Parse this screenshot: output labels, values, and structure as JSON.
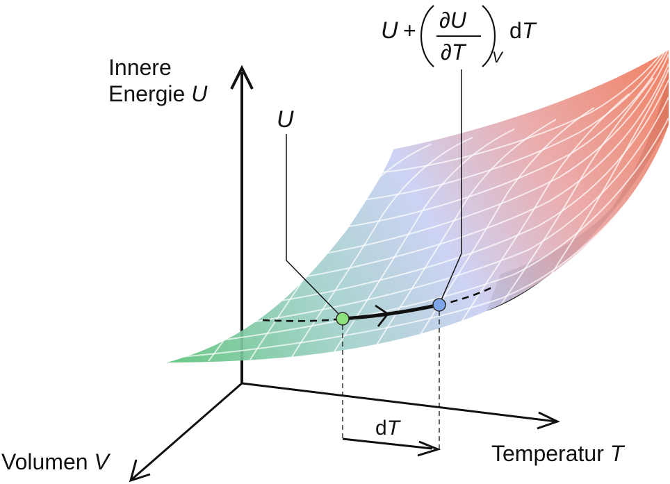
{
  "axes": {
    "energy_label_line1": "Innere",
    "energy_label_line2_text": "Energie ",
    "energy_label_line2_symbol": "U",
    "temperature_label_text": "Temperatur ",
    "temperature_label_symbol": "T",
    "volume_label_text": "Volumen ",
    "volume_label_symbol": "V"
  },
  "annotations": {
    "start_point_symbol": "U",
    "end_expr": {
      "u": "U",
      "plus": "+",
      "numerator": "∂U",
      "denominator": "∂T",
      "subscript": "V",
      "d": "d",
      "t": "T"
    },
    "increment_d": "d",
    "increment_symbol": "T"
  },
  "colors": {
    "surface_low": "#5cc27a",
    "surface_mid": "#c9cff3",
    "surface_high": "#ee7a5c",
    "surface_underside": "#2f2f2f",
    "start_point": "#8fe07f",
    "end_point": "#7fa6e6",
    "axis": "#111111"
  },
  "icons": {
    "arrowheads": "arrowhead-icon",
    "path_direction": "chevron-right-icon"
  }
}
